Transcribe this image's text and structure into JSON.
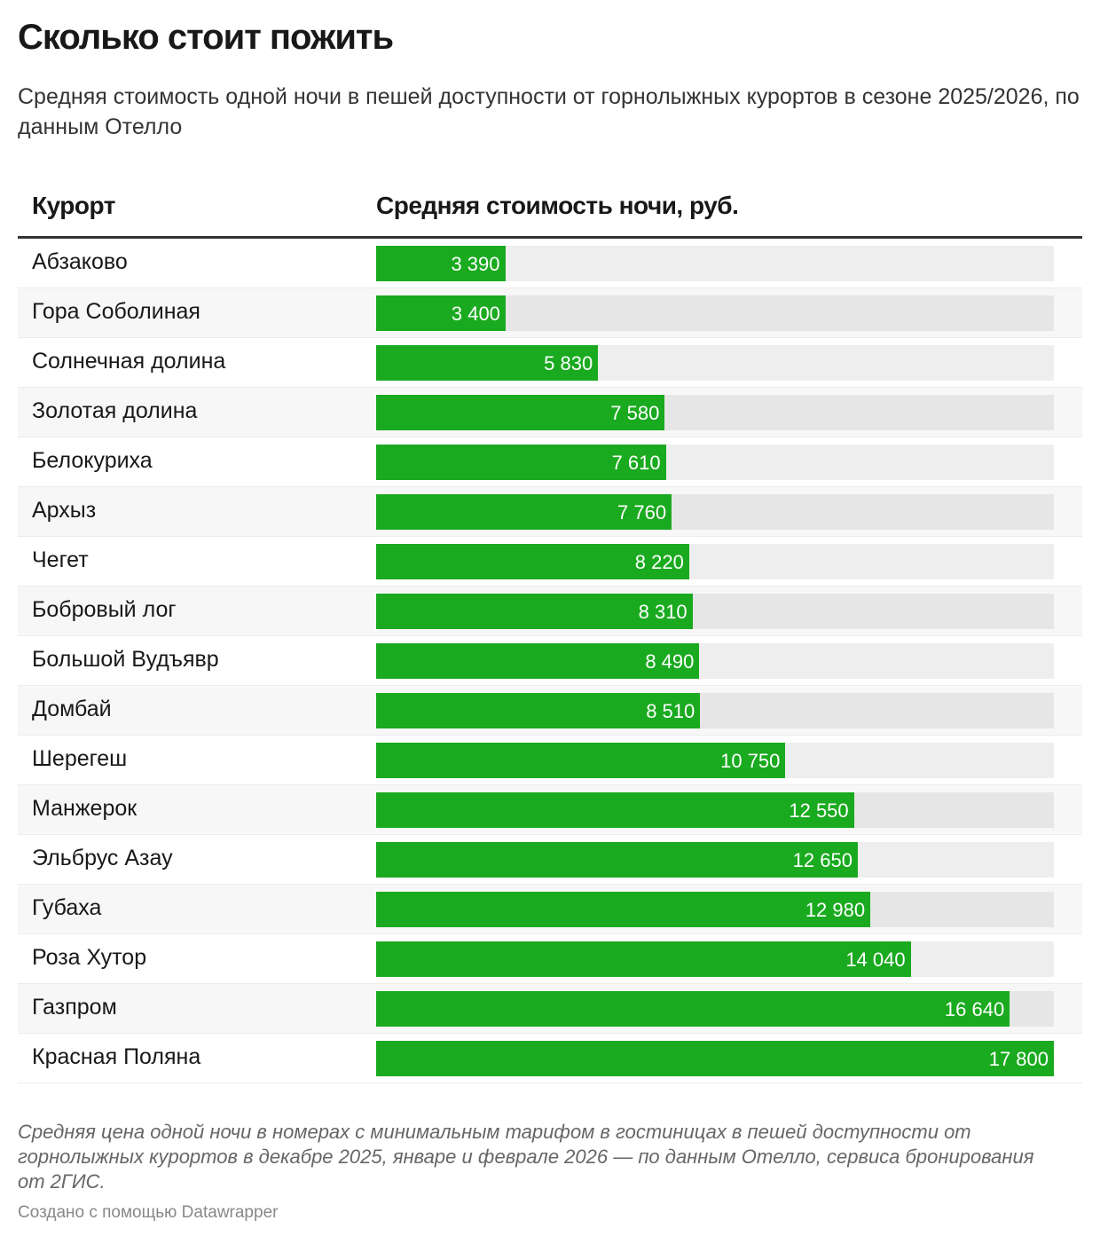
{
  "title": "Сколько стоит пожить",
  "subtitle": "Средняя стоимость одной ночи в пешей доступности от горнолыжных курортов в сезоне 2025/2026, по данным Отелло",
  "notes": "Средняя цена одной ночи в номерах с минимальным тарифом в гостиницах в пешей доступности от горнолыжных курортов в декабре 2025, январе и феврале 2026 — по данным Отелло, сервиса бронирования от 2ГИС.",
  "credit": "Создано с помощью Datawrapper",
  "colors": {
    "bar": "#1aaa1f",
    "track": "#eeeeee"
  },
  "chart_data": {
    "type": "table",
    "columns": [
      "Курорт",
      "Средняя стоимость ночи, руб."
    ],
    "max": 17800,
    "rows": [
      {
        "name": "Абзаково",
        "value": 3390,
        "label": "3 390"
      },
      {
        "name": "Гора Соболиная",
        "value": 3400,
        "label": "3 400"
      },
      {
        "name": "Солнечная долина",
        "value": 5830,
        "label": "5 830"
      },
      {
        "name": "Золотая долина",
        "value": 7580,
        "label": "7 580"
      },
      {
        "name": "Белокуриха",
        "value": 7610,
        "label": "7 610"
      },
      {
        "name": "Архыз",
        "value": 7760,
        "label": "7 760"
      },
      {
        "name": "Чегет",
        "value": 8220,
        "label": "8 220"
      },
      {
        "name": "Бобровый лог",
        "value": 8310,
        "label": "8 310"
      },
      {
        "name": "Большой Вудъявр",
        "value": 8490,
        "label": "8 490"
      },
      {
        "name": "Домбай",
        "value": 8510,
        "label": "8 510"
      },
      {
        "name": "Шерегеш",
        "value": 10750,
        "label": "10 750"
      },
      {
        "name": "Манжерок",
        "value": 12550,
        "label": "12 550"
      },
      {
        "name": "Эльбрус Азау",
        "value": 12650,
        "label": "12 650"
      },
      {
        "name": "Губаха",
        "value": 12980,
        "label": "12 980"
      },
      {
        "name": "Роза Хутор",
        "value": 14040,
        "label": "14 040"
      },
      {
        "name": "Газпром",
        "value": 16640,
        "label": "16 640"
      },
      {
        "name": "Красная Поляна",
        "value": 17800,
        "label": "17 800"
      }
    ]
  }
}
